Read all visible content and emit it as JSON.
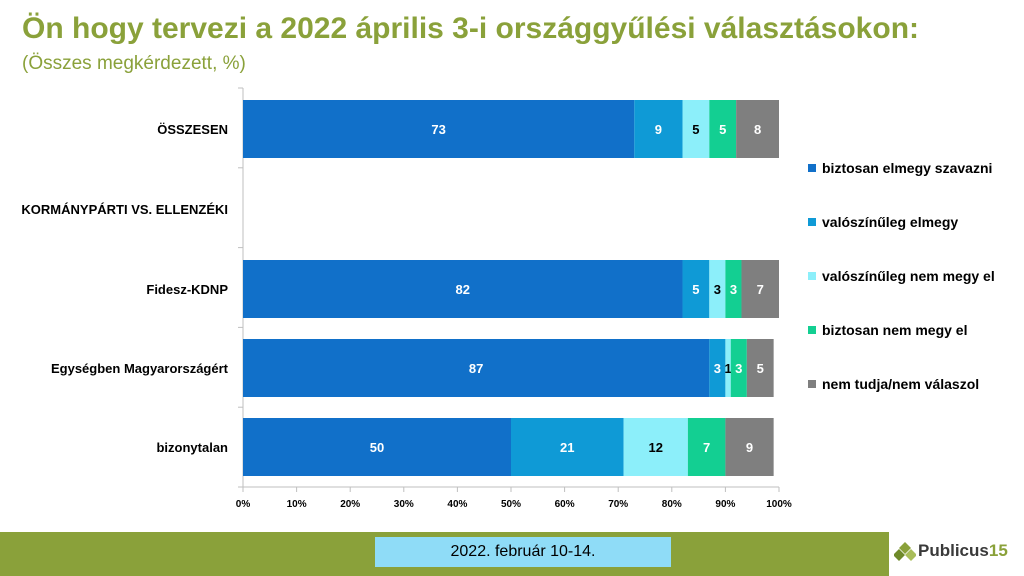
{
  "title": "Ön hogy tervezi a 2022 április 3-i országgyűlési választásokon:",
  "subtitle": "(Összes megkérdezett, %)",
  "date": "2022. február 10-14.",
  "logo": {
    "text": "Publicus",
    "number": "15"
  },
  "colors": {
    "title": "#8aa13a",
    "footer": "#8aa13a",
    "date_box": "#8fdcf7",
    "series": [
      "#1170c9",
      "#0f9ad6",
      "#8ceffa",
      "#13cf92",
      "#7f7f7f"
    ],
    "label_colors": [
      "#ffffff",
      "#ffffff",
      "#000000",
      "#ffffff",
      "#ffffff"
    ]
  },
  "chart_data": {
    "type": "bar",
    "orientation": "horizontal",
    "stacked": true,
    "categories": [
      "ÖSSZESEN",
      "KORMÁNYPÁRTI VS. ELLENZÉKI",
      "Fidesz-KDNP",
      "Egységben Magyarországért",
      "bizonytalan"
    ],
    "series": [
      {
        "name": "biztosan elmegy szavazni",
        "values": [
          73,
          null,
          82,
          87,
          50
        ]
      },
      {
        "name": "valószínűleg elmegy",
        "values": [
          9,
          null,
          5,
          3,
          21
        ]
      },
      {
        "name": "valószínűleg nem megy el",
        "values": [
          5,
          null,
          3,
          1,
          12
        ]
      },
      {
        "name": "biztosan nem megy el",
        "values": [
          5,
          null,
          3,
          3,
          7
        ]
      },
      {
        "name": "nem tudja/nem válaszol",
        "values": [
          8,
          null,
          7,
          5,
          9
        ]
      }
    ],
    "x_ticks": [
      "0%",
      "10%",
      "20%",
      "30%",
      "40%",
      "50%",
      "60%",
      "70%",
      "80%",
      "90%",
      "100%"
    ],
    "xlim": [
      0,
      100
    ],
    "grid": false,
    "legend_position": "right"
  }
}
